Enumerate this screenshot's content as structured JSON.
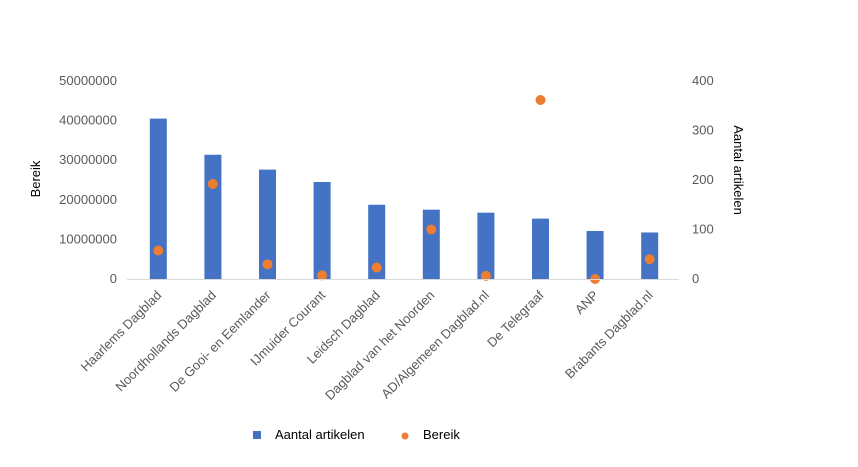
{
  "chart_data": {
    "type": "bar",
    "categories": [
      "Haarlems Dagblad",
      "Noordhollands Dagblad",
      "De Gooi- en Eemlander",
      "IJmuider Courant",
      "Leidsch Dagblad",
      "Dagblad van het Noorden",
      "AD/Algemeen Dagblad.nl",
      "De Telegraaf",
      "ANP",
      "Brabants Dagblad.nl"
    ],
    "series": [
      {
        "name": "Aantal artikelen",
        "type": "bar",
        "axis": "right",
        "color": "#4472C4",
        "values": [
          324,
          251,
          221,
          196,
          150,
          140,
          134,
          122,
          97,
          94
        ]
      },
      {
        "name": "Bereik",
        "type": "scatter",
        "axis": "left",
        "color": "#ED7D31",
        "values": [
          7200000,
          24000000,
          3700000,
          900000,
          2900000,
          12500000,
          800000,
          45200000,
          0,
          5000000
        ]
      }
    ],
    "left_axis": {
      "label": "Bereik",
      "ylim": [
        0,
        50000000
      ],
      "ticks": [
        "0",
        "10000000",
        "20000000",
        "30000000",
        "40000000",
        "50000000"
      ]
    },
    "right_axis": {
      "label": "Aantal artikelen",
      "ylim": [
        0,
        400
      ],
      "ticks": [
        "0",
        "100",
        "200",
        "300",
        "400"
      ]
    },
    "legend": {
      "placement": "bottom",
      "entries": [
        "Aantal artikelen",
        "Bereik"
      ]
    },
    "grid": false,
    "title": ""
  }
}
